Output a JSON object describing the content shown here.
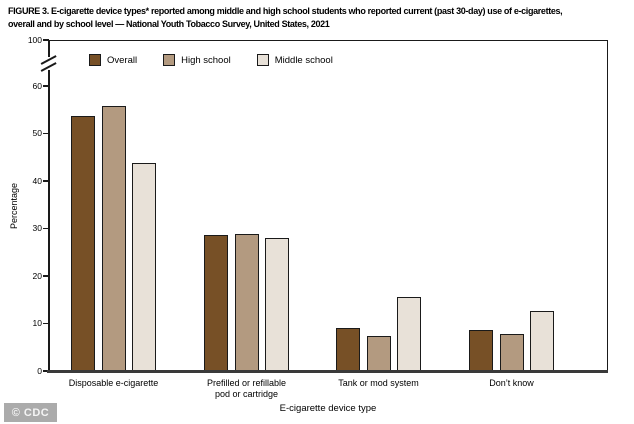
{
  "figure": {
    "title_line1": "FIGURE 3. E-cigarette device types* reported among middle and high school students who reported current (past 30-day) use of e-cigarettes,",
    "title_line2": "overall and by school level — National Youth Tobacco Survey, United States, 2021",
    "watermark": "© CDC"
  },
  "chart_data": {
    "type": "bar",
    "title": "FIGURE 3. E-cigarette device types* reported among middle and high school students who reported current (past 30-day) use of e-cigarettes, overall and by school level — National Youth Tobacco Survey, United States, 2021",
    "categories": [
      "Disposable e-cigarette",
      "Prefilled or refillable pod or cartridge",
      "Tank or mod system",
      "Don’t know"
    ],
    "category_label_lines": [
      [
        "Disposable e-cigarette"
      ],
      [
        "Prefilled or refillable",
        "pod or cartridge"
      ],
      [
        "Tank or mod system"
      ],
      [
        "Don’t know"
      ]
    ],
    "series": [
      {
        "name": "Overall",
        "color": "#775026",
        "values": [
          53.7,
          28.7,
          9.0,
          8.6
        ]
      },
      {
        "name": "High school",
        "color": "#B39A80",
        "values": [
          55.8,
          28.9,
          7.4,
          7.8
        ]
      },
      {
        "name": "Middle school",
        "color": "#E8E1D8",
        "values": [
          43.8,
          27.9,
          15.6,
          12.7
        ]
      }
    ],
    "xlabel": "E-cigarette device type",
    "ylabel": "Percentage",
    "y_ticks": [
      0,
      10,
      20,
      30,
      40,
      50,
      60,
      100
    ],
    "ylim": [
      0,
      100
    ],
    "axis_break": true,
    "grid": false,
    "legend_position": "top-left-inside",
    "bar_border_color": "#1a1a1a",
    "axis_color": "#1a1a1a"
  }
}
